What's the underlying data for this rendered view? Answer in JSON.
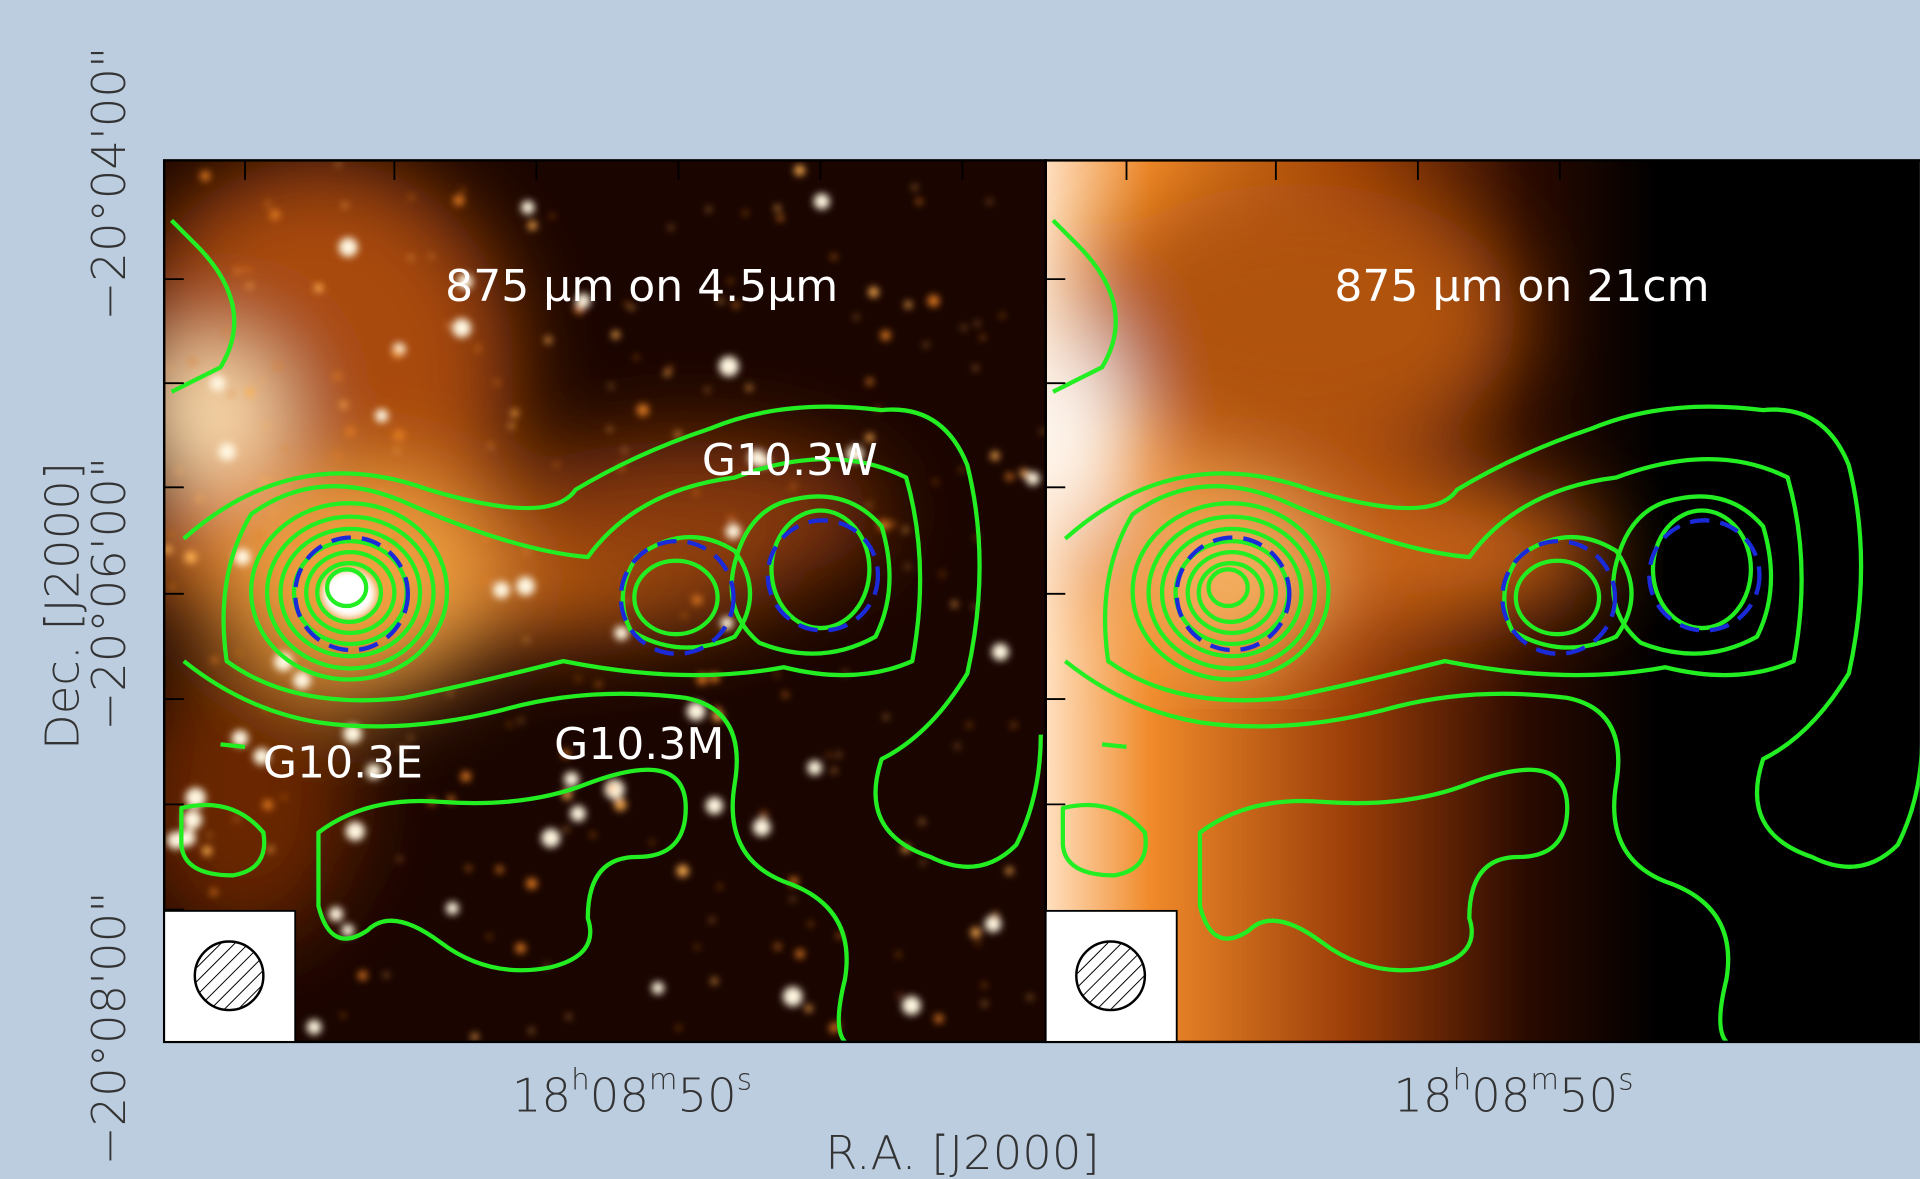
{
  "figure": {
    "panels": [
      {
        "label": "875 μm on 4.5μm",
        "sources": [
          "G10.3W",
          "G10.3M",
          "G10.3E"
        ]
      },
      {
        "label": "875 μm on 21cm"
      }
    ],
    "x_axis": {
      "title": "R.A. [J2000]",
      "tick": [
        "18",
        "h",
        "08",
        "m",
        "50",
        "s"
      ]
    },
    "y_axis": {
      "title": "Dec. [J2000]",
      "ticks": [
        "−20°04'00\"",
        "−20°06'00\"",
        "−20°08'00\""
      ]
    }
  }
}
